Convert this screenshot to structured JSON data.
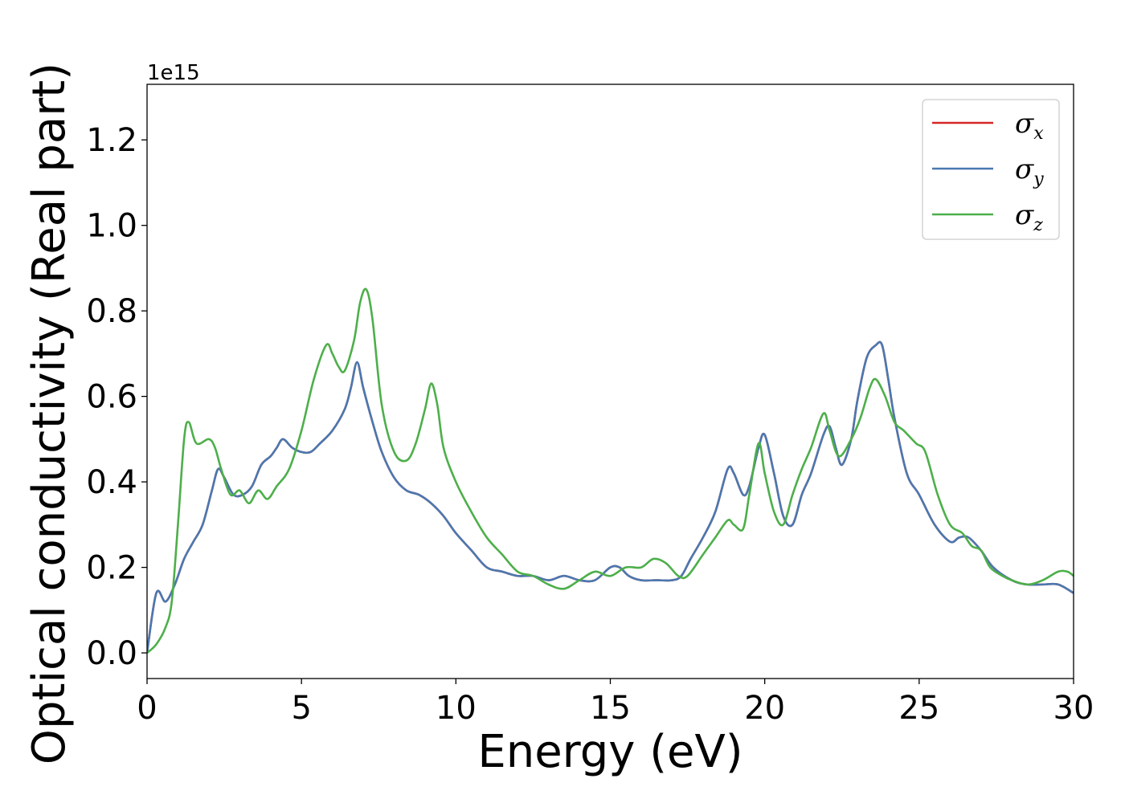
{
  "chart_data": {
    "type": "line",
    "xlabel": "Energy (eV)",
    "ylabel": "Optical conductivity (Real part)",
    "y_offset_label": "1e15",
    "xlim": [
      0,
      30
    ],
    "ylim": [
      -0.06,
      1.33
    ],
    "x_ticks": [
      0,
      5,
      10,
      15,
      20,
      25,
      30
    ],
    "x_tick_labels": [
      "0",
      "5",
      "10",
      "15",
      "20",
      "25",
      "30"
    ],
    "y_ticks": [
      0.0,
      0.2,
      0.4,
      0.6,
      0.8,
      1.0,
      1.2
    ],
    "y_tick_labels": [
      "0.0",
      "0.2",
      "0.4",
      "0.6",
      "0.8",
      "1.0",
      "1.2"
    ],
    "grid": false,
    "legend_position": "top-right",
    "series": [
      {
        "name": "σ",
        "subscript": "x",
        "color": "#d62728",
        "x": [
          0,
          0.3,
          0.6,
          0.9,
          1.2,
          1.5,
          1.8,
          2.1,
          2.3,
          2.5,
          2.8,
          3.1,
          3.4,
          3.7,
          4.0,
          4.2,
          4.4,
          4.7,
          5.0,
          5.3,
          5.6,
          6.0,
          6.4,
          6.6,
          6.8,
          7.0,
          7.3,
          7.6,
          8.0,
          8.4,
          8.8,
          9.2,
          9.6,
          10.0,
          10.5,
          11.0,
          11.5,
          12.0,
          12.5,
          13.0,
          13.5,
          14.0,
          14.5,
          15.0,
          15.3,
          15.6,
          16.0,
          16.5,
          17.0,
          17.3,
          17.6,
          18.0,
          18.4,
          18.8,
          19.0,
          19.3,
          19.5,
          19.8,
          20.0,
          20.3,
          20.6,
          20.9,
          21.2,
          21.5,
          21.9,
          22.1,
          22.3,
          22.5,
          22.8,
          23.0,
          23.3,
          23.6,
          23.8,
          24.0,
          24.2,
          24.6,
          25.0,
          25.5,
          26.0,
          26.3,
          26.6,
          27.0,
          27.4,
          28.0,
          28.5,
          29.0,
          29.5,
          30.0
        ],
        "y": [
          0.0,
          0.14,
          0.12,
          0.16,
          0.22,
          0.26,
          0.3,
          0.38,
          0.43,
          0.41,
          0.37,
          0.37,
          0.39,
          0.44,
          0.46,
          0.48,
          0.5,
          0.48,
          0.47,
          0.47,
          0.49,
          0.52,
          0.57,
          0.62,
          0.68,
          0.62,
          0.54,
          0.47,
          0.41,
          0.38,
          0.37,
          0.35,
          0.32,
          0.28,
          0.24,
          0.2,
          0.19,
          0.18,
          0.18,
          0.17,
          0.18,
          0.17,
          0.17,
          0.2,
          0.2,
          0.18,
          0.17,
          0.17,
          0.17,
          0.18,
          0.22,
          0.27,
          0.33,
          0.43,
          0.42,
          0.37,
          0.39,
          0.48,
          0.51,
          0.42,
          0.32,
          0.3,
          0.37,
          0.42,
          0.51,
          0.53,
          0.48,
          0.44,
          0.5,
          0.59,
          0.69,
          0.72,
          0.72,
          0.64,
          0.55,
          0.42,
          0.37,
          0.3,
          0.26,
          0.27,
          0.27,
          0.24,
          0.2,
          0.17,
          0.16,
          0.16,
          0.16,
          0.14
        ]
      },
      {
        "name": "σ",
        "subscript": "y",
        "color": "#4a78b0",
        "x": [
          0,
          0.3,
          0.6,
          0.9,
          1.2,
          1.5,
          1.8,
          2.1,
          2.3,
          2.5,
          2.8,
          3.1,
          3.4,
          3.7,
          4.0,
          4.2,
          4.4,
          4.7,
          5.0,
          5.3,
          5.6,
          6.0,
          6.4,
          6.6,
          6.8,
          7.0,
          7.3,
          7.6,
          8.0,
          8.4,
          8.8,
          9.2,
          9.6,
          10.0,
          10.5,
          11.0,
          11.5,
          12.0,
          12.5,
          13.0,
          13.5,
          14.0,
          14.5,
          15.0,
          15.3,
          15.6,
          16.0,
          16.5,
          17.0,
          17.3,
          17.6,
          18.0,
          18.4,
          18.8,
          19.0,
          19.3,
          19.5,
          19.8,
          20.0,
          20.3,
          20.6,
          20.9,
          21.2,
          21.5,
          21.9,
          22.1,
          22.3,
          22.5,
          22.8,
          23.0,
          23.3,
          23.6,
          23.8,
          24.0,
          24.2,
          24.6,
          25.0,
          25.5,
          26.0,
          26.3,
          26.6,
          27.0,
          27.4,
          28.0,
          28.5,
          29.0,
          29.5,
          30.0
        ],
        "y": [
          0.0,
          0.14,
          0.12,
          0.16,
          0.22,
          0.26,
          0.3,
          0.38,
          0.43,
          0.41,
          0.37,
          0.37,
          0.39,
          0.44,
          0.46,
          0.48,
          0.5,
          0.48,
          0.47,
          0.47,
          0.49,
          0.52,
          0.57,
          0.62,
          0.68,
          0.62,
          0.54,
          0.47,
          0.41,
          0.38,
          0.37,
          0.35,
          0.32,
          0.28,
          0.24,
          0.2,
          0.19,
          0.18,
          0.18,
          0.17,
          0.18,
          0.17,
          0.17,
          0.2,
          0.2,
          0.18,
          0.17,
          0.17,
          0.17,
          0.18,
          0.22,
          0.27,
          0.33,
          0.43,
          0.42,
          0.37,
          0.39,
          0.48,
          0.51,
          0.42,
          0.32,
          0.3,
          0.37,
          0.42,
          0.51,
          0.53,
          0.48,
          0.44,
          0.5,
          0.59,
          0.69,
          0.72,
          0.72,
          0.64,
          0.55,
          0.42,
          0.37,
          0.3,
          0.26,
          0.27,
          0.27,
          0.24,
          0.2,
          0.17,
          0.16,
          0.16,
          0.16,
          0.14
        ]
      },
      {
        "name": "σ",
        "subscript": "z",
        "color": "#4daf4a",
        "x": [
          0,
          0.3,
          0.6,
          0.8,
          1.0,
          1.2,
          1.35,
          1.6,
          2.0,
          2.2,
          2.4,
          2.7,
          3.0,
          3.3,
          3.6,
          3.9,
          4.2,
          4.6,
          5.0,
          5.4,
          5.8,
          6.0,
          6.2,
          6.4,
          6.7,
          6.9,
          7.1,
          7.3,
          7.6,
          8.0,
          8.4,
          8.7,
          9.0,
          9.2,
          9.4,
          9.6,
          10.0,
          10.5,
          11.0,
          11.5,
          12.0,
          12.5,
          13.0,
          13.5,
          14.0,
          14.5,
          15.0,
          15.5,
          16.0,
          16.4,
          16.8,
          17.2,
          17.5,
          18.0,
          18.4,
          18.8,
          19.0,
          19.3,
          19.5,
          19.8,
          20.0,
          20.3,
          20.6,
          20.9,
          21.2,
          21.5,
          21.9,
          22.1,
          22.4,
          22.8,
          23.1,
          23.4,
          23.6,
          23.9,
          24.2,
          24.5,
          24.9,
          25.2,
          25.6,
          26.0,
          26.4,
          26.7,
          27.0,
          27.3,
          27.7,
          28.0,
          28.5,
          29.0,
          29.5,
          29.8,
          30.0
        ],
        "y": [
          0.0,
          0.02,
          0.06,
          0.12,
          0.3,
          0.5,
          0.54,
          0.49,
          0.5,
          0.48,
          0.43,
          0.37,
          0.38,
          0.35,
          0.38,
          0.36,
          0.39,
          0.43,
          0.52,
          0.64,
          0.72,
          0.7,
          0.67,
          0.66,
          0.73,
          0.82,
          0.85,
          0.78,
          0.58,
          0.47,
          0.45,
          0.49,
          0.57,
          0.63,
          0.58,
          0.48,
          0.4,
          0.33,
          0.27,
          0.23,
          0.19,
          0.18,
          0.16,
          0.15,
          0.17,
          0.19,
          0.18,
          0.2,
          0.2,
          0.22,
          0.21,
          0.18,
          0.18,
          0.23,
          0.27,
          0.31,
          0.3,
          0.29,
          0.37,
          0.49,
          0.42,
          0.33,
          0.3,
          0.37,
          0.43,
          0.48,
          0.56,
          0.52,
          0.46,
          0.5,
          0.55,
          0.62,
          0.64,
          0.6,
          0.54,
          0.52,
          0.49,
          0.47,
          0.37,
          0.3,
          0.28,
          0.25,
          0.24,
          0.2,
          0.18,
          0.17,
          0.16,
          0.17,
          0.19,
          0.19,
          0.18
        ]
      }
    ]
  }
}
